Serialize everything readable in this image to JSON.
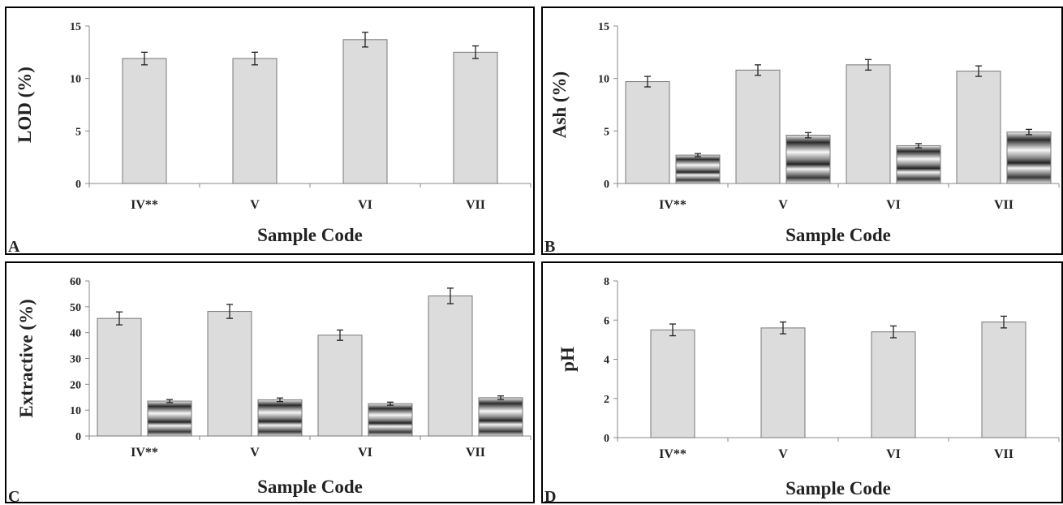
{
  "chart_data": [
    {
      "type": "bar",
      "panel_letter": "A",
      "xlabel": "Sample Code",
      "ylabel": "LOD (%)",
      "ylim": [
        0,
        15
      ],
      "yticks": [
        0,
        5,
        10,
        15
      ],
      "categories": [
        "IV**",
        "V",
        "VI",
        "VII"
      ],
      "series": [
        {
          "values": [
            11.9,
            11.9,
            13.7,
            12.5
          ],
          "errors": [
            0.6,
            0.6,
            0.7,
            0.6
          ],
          "fill": "#dcdcdc"
        }
      ]
    },
    {
      "type": "bar",
      "panel_letter": "B",
      "xlabel": "Sample Code",
      "ylabel": "Ash (%)",
      "ylim": [
        0,
        15
      ],
      "yticks": [
        0,
        5,
        10,
        15
      ],
      "categories": [
        "IV**",
        "V",
        "VI",
        "VII"
      ],
      "series": [
        {
          "values": [
            9.7,
            10.8,
            11.3,
            10.7
          ],
          "errors": [
            0.5,
            0.5,
            0.5,
            0.5
          ],
          "fill": "#dcdcdc"
        },
        {
          "values": [
            2.7,
            4.6,
            3.6,
            4.9
          ],
          "errors": [
            0.15,
            0.25,
            0.2,
            0.25
          ],
          "fill": "gradient"
        }
      ]
    },
    {
      "type": "bar",
      "panel_letter": "C",
      "xlabel": "Sample Code",
      "ylabel": "Extractive (%)",
      "ylim": [
        0,
        60
      ],
      "yticks": [
        0,
        10,
        20,
        30,
        40,
        50,
        60
      ],
      "categories": [
        "IV**",
        "V",
        "VI",
        "VII"
      ],
      "series": [
        {
          "values": [
            45.5,
            48.2,
            39.0,
            54.2
          ],
          "errors": [
            2.5,
            2.7,
            2.0,
            3.0
          ],
          "fill": "#dcdcdc"
        },
        {
          "values": [
            13.5,
            14.0,
            12.5,
            14.8
          ],
          "errors": [
            0.6,
            0.7,
            0.6,
            0.7
          ],
          "fill": "gradient"
        }
      ]
    },
    {
      "type": "bar",
      "panel_letter": "D",
      "xlabel": "Sample Code",
      "ylabel": "pH",
      "ylim": [
        0,
        8
      ],
      "yticks": [
        0,
        2,
        4,
        6,
        8
      ],
      "categories": [
        "IV**",
        "V",
        "VI",
        "VII"
      ],
      "series": [
        {
          "values": [
            5.5,
            5.6,
            5.4,
            5.9
          ],
          "errors": [
            0.3,
            0.3,
            0.3,
            0.3
          ],
          "fill": "#dcdcdc"
        }
      ]
    }
  ]
}
